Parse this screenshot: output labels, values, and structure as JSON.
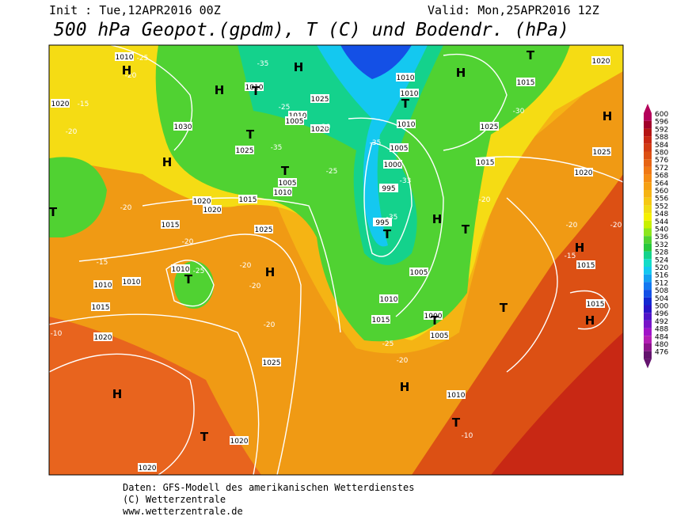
{
  "header": {
    "init": "Init : Tue,12APR2016 00Z",
    "valid": "Valid: Mon,25APR2016 12Z",
    "title": "500 hPa Geopot.(gpdm), T (C) und Bodendr. (hPa)"
  },
  "legend": {
    "values": [
      600,
      596,
      592,
      588,
      584,
      580,
      576,
      572,
      568,
      564,
      560,
      556,
      552,
      548,
      544,
      540,
      536,
      532,
      528,
      524,
      520,
      516,
      512,
      508,
      504,
      500,
      496,
      492,
      488,
      484,
      480,
      476
    ],
    "colors": [
      "#b4005a",
      "#a0002a",
      "#b41414",
      "#c82814",
      "#d23c14",
      "#dc5014",
      "#e66414",
      "#f07814",
      "#f58c14",
      "#f5a014",
      "#f5b414",
      "#f5c814",
      "#f0dc14",
      "#f5f000",
      "#c8f000",
      "#8ce61e",
      "#50d232",
      "#28c83c",
      "#14d28c",
      "#14dcc8",
      "#14c8f0",
      "#14a0f0",
      "#1478f0",
      "#1450e6",
      "#1428d2",
      "#2814c8",
      "#5014c8",
      "#7814c8",
      "#a014c8",
      "#b41eb4",
      "#8c148c",
      "#64146e"
    ]
  },
  "map": {
    "isobar_labels": [
      "1010",
      "1020",
      "1030",
      "1025",
      "1025",
      "1010",
      "1005",
      "1020",
      "1010",
      "1010",
      "1010",
      "1010",
      "1005",
      "1000",
      "995",
      "995",
      "1015",
      "1025",
      "1015",
      "1020",
      "1025",
      "1020",
      "1020",
      "1020",
      "1015",
      "1005",
      "1010",
      "1015",
      "1025",
      "1010",
      "1010",
      "1010",
      "1015",
      "1020",
      "1025",
      "1020",
      "1020",
      "1005",
      "1010",
      "1015",
      "1000",
      "1005",
      "1010",
      "1015",
      "1015"
    ],
    "temperature_labels": [
      "-25",
      "-20",
      "-15",
      "-20",
      "-35",
      "-25",
      "-30",
      "-35",
      "-25",
      "-35",
      "-33",
      "-35",
      "-30",
      "-20",
      "-20",
      "-20",
      "-15",
      "-20",
      "-20",
      "-15",
      "-20",
      "-20",
      "-20",
      "-25",
      "-25",
      "-20",
      "-10",
      "-10"
    ],
    "pressure_centers": [
      "H",
      "H",
      "H",
      "H",
      "H",
      "H",
      "H",
      "H",
      "H",
      "H",
      "H",
      "H",
      "T",
      "T",
      "T",
      "T",
      "T",
      "T",
      "T",
      "T",
      "T",
      "T",
      "T",
      "T",
      "T"
    ]
  },
  "footer": [
    "Daten: GFS-Modell des amerikanischen Wetterdienstes",
    "(C) Wetterzentrale",
    "www.wetterzentrale.de"
  ]
}
